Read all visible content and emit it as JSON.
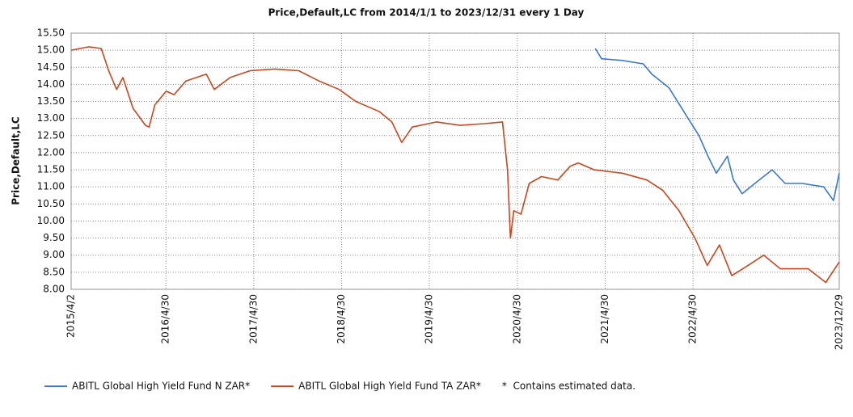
{
  "chart_data": {
    "type": "line",
    "title": "Price,Default,LC from 2014/1/1 to 2023/12/31 every 1 Day",
    "ylabel": "Price,Default,LC",
    "note": "*  Contains estimated data.",
    "grid": true,
    "xlim": [
      "2015/4/2",
      "2023/12/29"
    ],
    "xticks": [
      "2015/4/2",
      "2016/4/30",
      "2017/4/30",
      "2018/4/30",
      "2019/4/30",
      "2020/4/30",
      "2021/4/30",
      "2022/4/30",
      "2023/12/29"
    ],
    "ylim": [
      8,
      15.5
    ],
    "yticks": [
      {
        "value": 8,
        "label": "8.00"
      },
      {
        "value": 8.5,
        "label": "8.50"
      },
      {
        "value": 9,
        "label": "9.00"
      },
      {
        "value": 9.5,
        "label": "9.50"
      },
      {
        "value": 10,
        "label": "10.00"
      },
      {
        "value": 10.5,
        "label": "10.50"
      },
      {
        "value": 11,
        "label": "11.00"
      },
      {
        "value": 11.5,
        "label": "11.50"
      },
      {
        "value": 12,
        "label": "12.00"
      },
      {
        "value": 12.5,
        "label": "12.50"
      },
      {
        "value": 13,
        "label": "13.00"
      },
      {
        "value": 13.5,
        "label": "13.50"
      },
      {
        "value": 14,
        "label": "14.00"
      },
      {
        "value": 14.5,
        "label": "14.50"
      },
      {
        "value": 15,
        "label": "15.00"
      },
      {
        "value": 15.5,
        "label": "15.50"
      }
    ],
    "series": [
      {
        "name": "ABITL Global High Yield Fund N ZAR*",
        "color": "#3a78c9",
        "x": [
          "2021/3/20",
          "2021/4/15",
          "2021/7/10",
          "2021/10/5",
          "2021/11/10",
          "2022/1/20",
          "2022/4/1",
          "2022/5/25",
          "2022/7/1",
          "2022/8/5",
          "2022/9/20",
          "2022/10/15",
          "2022/11/20",
          "2023/1/12",
          "2023/3/25",
          "2023/5/18",
          "2023/7/28",
          "2023/10/25",
          "2023/12/5",
          "2023/12/29"
        ],
        "values": [
          15.05,
          14.75,
          14.7,
          14.6,
          14.3,
          13.9,
          13.1,
          12.5,
          11.9,
          11.4,
          11.9,
          11.2,
          10.8,
          11.1,
          11.5,
          11.1,
          11.1,
          11.0,
          10.6,
          11.4
        ]
      },
      {
        "name": "ABITL Global High Yield Fund TA ZAR*",
        "color": "#c8471e",
        "x": [
          "2015/4/2",
          "2015/6/15",
          "2015/8/5",
          "2015/9/5",
          "2015/10/8",
          "2015/11/3",
          "2015/12/15",
          "2016/2/5",
          "2016/2/20",
          "2016/3/15",
          "2016/5/1",
          "2016/6/3",
          "2016/7/22",
          "2016/10/15",
          "2016/11/17",
          "2017/1/22",
          "2017/4/15",
          "2017/7/27",
          "2017/11/3",
          "2018/1/26",
          "2018/4/20",
          "2018/6/28",
          "2018/10/5",
          "2018/11/25",
          "2019/1/5",
          "2019/2/18",
          "2019/5/30",
          "2019/9/5",
          "2019/12/15",
          "2020/2/28",
          "2020/3/20",
          "2020/4/1",
          "2020/4/15",
          "2020/5/15",
          "2020/6/18",
          "2020/8/8",
          "2020/10/15",
          "2020/12/5",
          "2021/1/8",
          "2021/3/15",
          "2021/7/10",
          "2021/10/20",
          "2021/12/25",
          "2022/3/3",
          "2022/5/8",
          "2022/6/28",
          "2022/8/18",
          "2022/10/8",
          "2022/12/15",
          "2023/2/18",
          "2023/4/28",
          "2023/8/22",
          "2023/11/3",
          "2023/12/29"
        ],
        "values": [
          15.0,
          15.1,
          15.05,
          14.4,
          13.85,
          14.2,
          13.3,
          12.8,
          12.75,
          13.4,
          13.8,
          13.7,
          14.1,
          14.3,
          13.85,
          14.2,
          14.4,
          14.45,
          14.4,
          14.1,
          13.85,
          13.5,
          13.2,
          12.9,
          12.3,
          12.75,
          12.9,
          12.8,
          12.85,
          12.9,
          11.5,
          9.5,
          10.3,
          10.2,
          11.1,
          11.3,
          11.2,
          11.6,
          11.7,
          11.5,
          11.4,
          11.2,
          10.9,
          10.3,
          9.5,
          8.7,
          9.3,
          8.4,
          8.7,
          9.0,
          8.6,
          8.6,
          8.2,
          8.8
        ]
      }
    ]
  }
}
